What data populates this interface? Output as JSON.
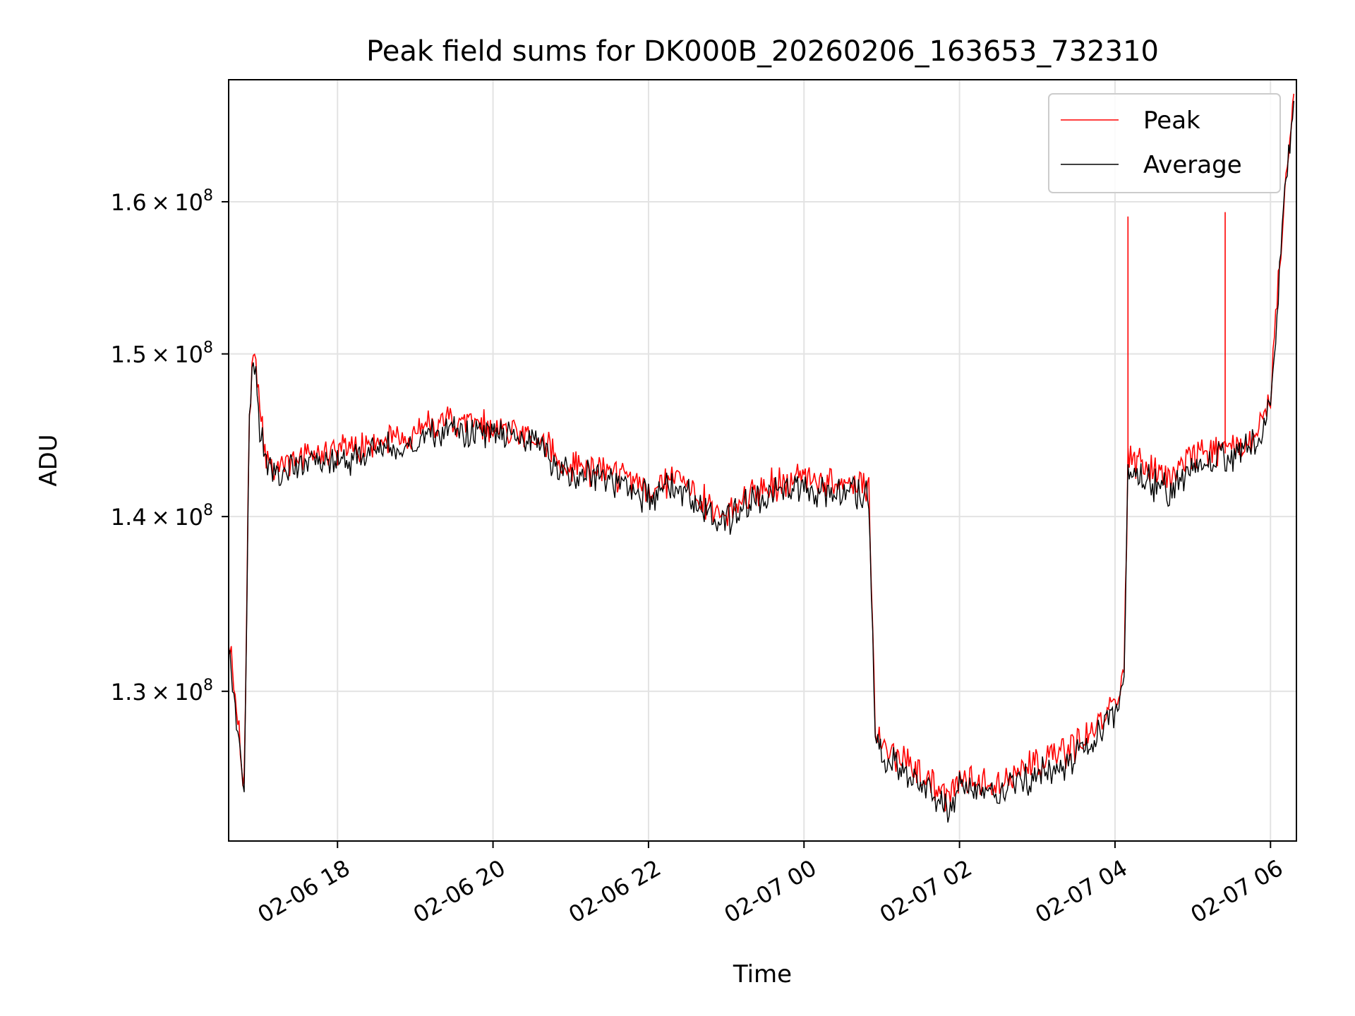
{
  "chart_data": {
    "type": "line",
    "title": "Peak field sums for DK000B_20260206_163653_732310",
    "xlabel": "Time",
    "ylabel": "ADU",
    "yscale": "log",
    "xlim": [
      "2026-02-06 16:36",
      "2026-02-07 06:20"
    ],
    "ylim": [
      122000000,
      168500000
    ],
    "grid": true,
    "legend_position": "top-right",
    "x_ticks": [
      "02-06 18",
      "02-06 20",
      "02-06 22",
      "02-07 00",
      "02-07 02",
      "02-07 04",
      "02-07 06"
    ],
    "x_tick_times": [
      "2026-02-06 18:00",
      "2026-02-06 20:00",
      "2026-02-06 22:00",
      "2026-02-07 00:00",
      "2026-02-07 02:00",
      "2026-02-07 04:00",
      "2026-02-07 06:00"
    ],
    "y_ticks": [
      {
        "value": 130000000,
        "mantissa": "1.3",
        "base": "10",
        "exponent": "8"
      },
      {
        "value": 140000000,
        "mantissa": "1.4",
        "base": "10",
        "exponent": "8"
      },
      {
        "value": 150000000,
        "mantissa": "1.5",
        "base": "10",
        "exponent": "8"
      },
      {
        "value": 160000000,
        "mantissa": "1.6",
        "base": "10",
        "exponent": "8"
      }
    ],
    "series": [
      {
        "name": "Peak",
        "color": "#ff0000",
        "x": [
          "2026-02-06 16:36",
          "2026-02-06 16:40",
          "2026-02-06 16:45",
          "2026-02-06 16:48",
          "2026-02-06 16:50",
          "2026-02-06 16:52",
          "2026-02-06 16:55",
          "2026-02-06 17:00",
          "2026-02-06 17:05",
          "2026-02-06 17:15",
          "2026-02-06 17:30",
          "2026-02-06 17:45",
          "2026-02-06 18:00",
          "2026-02-06 18:30",
          "2026-02-06 19:00",
          "2026-02-06 19:30",
          "2026-02-06 20:00",
          "2026-02-06 20:30",
          "2026-02-06 21:00",
          "2026-02-06 21:30",
          "2026-02-06 22:00",
          "2026-02-06 22:20",
          "2026-02-06 22:40",
          "2026-02-06 23:00",
          "2026-02-06 23:20",
          "2026-02-06 23:40",
          "2026-02-07 00:00",
          "2026-02-07 00:20",
          "2026-02-07 00:50",
          "2026-02-07 00:55",
          "2026-02-07 01:00",
          "2026-02-07 01:20",
          "2026-02-07 01:40",
          "2026-02-07 01:50",
          "2026-02-07 02:00",
          "2026-02-07 02:20",
          "2026-02-07 02:40",
          "2026-02-07 03:00",
          "2026-02-07 03:20",
          "2026-02-07 03:40",
          "2026-02-07 04:00",
          "2026-02-07 04:07",
          "2026-02-07 04:10",
          "2026-02-07 04:20",
          "2026-02-07 04:40",
          "2026-02-07 05:00",
          "2026-02-07 05:20",
          "2026-02-07 05:40",
          "2026-02-07 05:50",
          "2026-02-07 06:00",
          "2026-02-07 06:10",
          "2026-02-07 06:18"
        ],
        "y": [
          133000000,
          130000000,
          127000000,
          125000000,
          135000000,
          146000000,
          151000000,
          146000000,
          143500000,
          143000000,
          143500000,
          144000000,
          143800000,
          144500000,
          145000000,
          145800000,
          145500000,
          145000000,
          143000000,
          142800000,
          141500000,
          142500000,
          141000000,
          140000000,
          141500000,
          142000000,
          142300000,
          142000000,
          141800000,
          128000000,
          127000000,
          126000000,
          125000000,
          124000000,
          125500000,
          124800000,
          125500000,
          126000000,
          126500000,
          127500000,
          129500000,
          131000000,
          143500000,
          143000000,
          142000000,
          143500000,
          144000000,
          144500000,
          145000000,
          147000000,
          160000000,
          167500000
        ]
      },
      {
        "name": "Average",
        "color": "#000000",
        "x": [
          "2026-02-06 16:36",
          "2026-02-06 16:40",
          "2026-02-06 16:45",
          "2026-02-06 16:48",
          "2026-02-06 16:50",
          "2026-02-06 16:52",
          "2026-02-06 16:55",
          "2026-02-06 17:00",
          "2026-02-06 17:05",
          "2026-02-06 17:15",
          "2026-02-06 17:30",
          "2026-02-06 17:45",
          "2026-02-06 18:00",
          "2026-02-06 18:30",
          "2026-02-06 19:00",
          "2026-02-06 19:30",
          "2026-02-06 20:00",
          "2026-02-06 20:30",
          "2026-02-06 21:00",
          "2026-02-06 21:30",
          "2026-02-06 22:00",
          "2026-02-06 22:20",
          "2026-02-06 22:40",
          "2026-02-06 23:00",
          "2026-02-06 23:20",
          "2026-02-06 23:40",
          "2026-02-07 00:00",
          "2026-02-07 00:20",
          "2026-02-07 00:50",
          "2026-02-07 00:55",
          "2026-02-07 01:00",
          "2026-02-07 01:20",
          "2026-02-07 01:40",
          "2026-02-07 01:50",
          "2026-02-07 02:00",
          "2026-02-07 02:20",
          "2026-02-07 02:40",
          "2026-02-07 03:00",
          "2026-02-07 03:20",
          "2026-02-07 03:40",
          "2026-02-07 04:00",
          "2026-02-07 04:07",
          "2026-02-07 04:10",
          "2026-02-07 04:20",
          "2026-02-07 04:40",
          "2026-02-07 05:00",
          "2026-02-07 05:20",
          "2026-02-07 05:40",
          "2026-02-07 05:50",
          "2026-02-07 06:00",
          "2026-02-07 06:10",
          "2026-02-07 06:18"
        ],
        "y": [
          132500000,
          129500000,
          126500000,
          124500000,
          134500000,
          145500000,
          150500000,
          145500000,
          143000000,
          142500000,
          143000000,
          143500000,
          143300000,
          144000000,
          144500000,
          145300000,
          145000000,
          144500000,
          142500000,
          142300000,
          141000000,
          142000000,
          140500000,
          139500000,
          141000000,
          141500000,
          141800000,
          141500000,
          141300000,
          127500000,
          126500000,
          125500000,
          124500000,
          123500000,
          125000000,
          124300000,
          125000000,
          125500000,
          126000000,
          127000000,
          129000000,
          130500000,
          143000000,
          142500000,
          141500000,
          143000000,
          143500000,
          144000000,
          144500000,
          146500000,
          159500000,
          167000000
        ]
      }
    ],
    "annotations": [
      {
        "series": "Peak",
        "x": "2026-02-07 04:10",
        "y": 159000000,
        "type": "spike"
      },
      {
        "series": "Peak",
        "x": "2026-02-07 05:25",
        "y": 159300000,
        "type": "spike"
      }
    ]
  }
}
